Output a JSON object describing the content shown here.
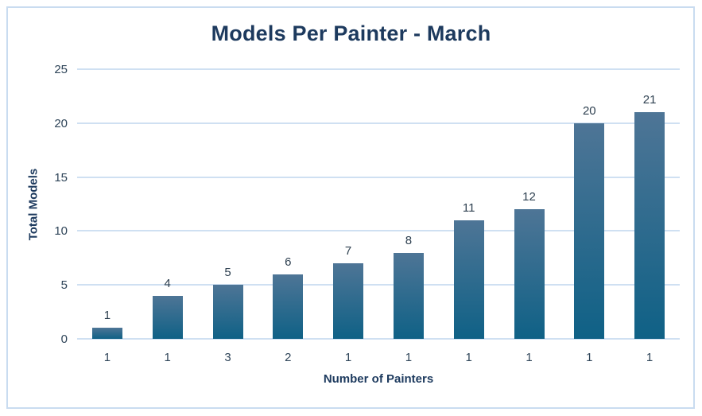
{
  "chart_data": {
    "type": "bar",
    "title": "Models Per Painter - March",
    "xlabel": "Number of Painters",
    "ylabel": "Total Models",
    "categories": [
      "1",
      "1",
      "3",
      "2",
      "1",
      "1",
      "1",
      "1",
      "1",
      "1"
    ],
    "values": [
      1,
      4,
      5,
      6,
      7,
      8,
      11,
      12,
      20,
      21
    ],
    "data_labels": [
      "1",
      "4",
      "5",
      "6",
      "7",
      "8",
      "11",
      "12",
      "20",
      "21"
    ],
    "ylim": [
      0,
      25
    ],
    "yticks": [
      0,
      5,
      10,
      15,
      20,
      25
    ],
    "grid": "horizontal",
    "legend_position": "none",
    "colors": {
      "bar_gradient_top": "#4e7596",
      "bar_gradient_bottom": "#0f6186",
      "gridline": "#cfe0f2",
      "border": "#c9dcf0",
      "title_text": "#1d3a5e",
      "axis_title_text": "#1d3a5e",
      "tick_text": "#2e4458",
      "data_label_text": "#2e4050",
      "background": "#ffffff"
    }
  }
}
